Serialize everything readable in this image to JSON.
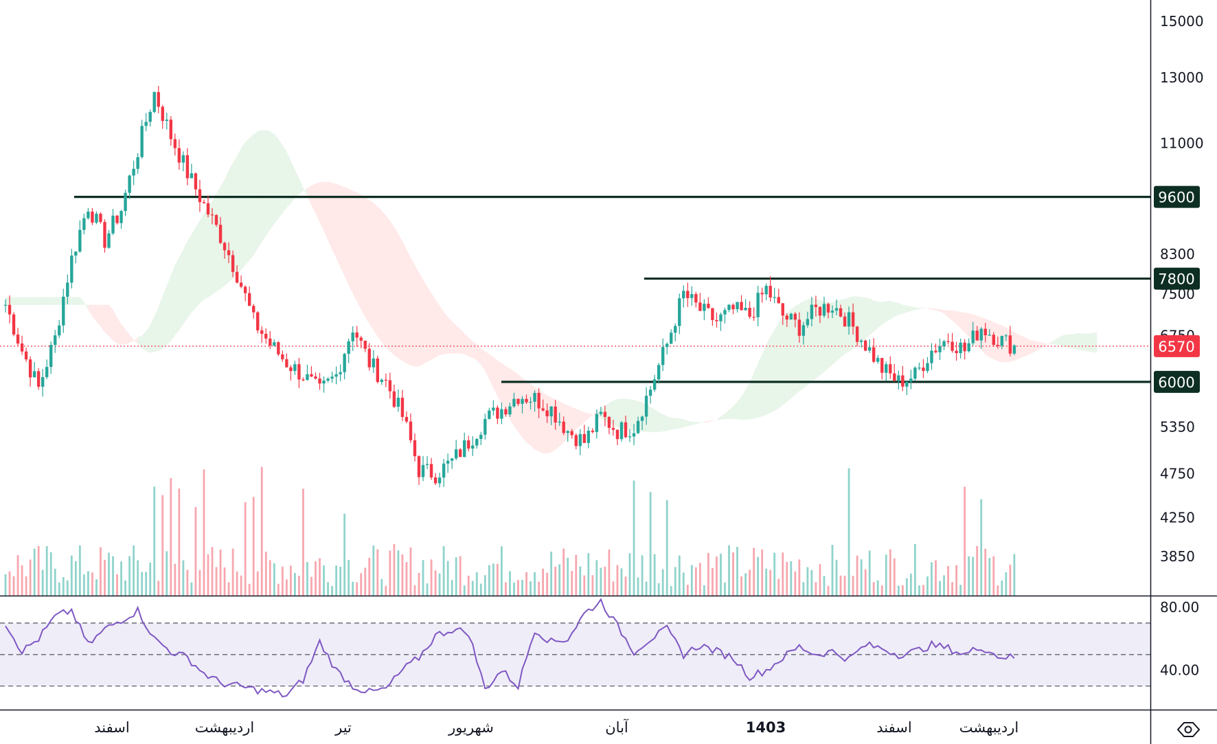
{
  "chart_data": [
    {
      "type": "candlestick",
      "title": "",
      "price_axis": {
        "ticks": [
          "15000",
          "13000",
          "11000",
          "8300",
          "7500",
          "6750",
          "5350",
          "4750",
          "4250",
          "3850"
        ],
        "tick_values": [
          15000,
          13000,
          11000,
          8300,
          7500,
          6750,
          5350,
          4750,
          4250,
          3850
        ],
        "scale": "log",
        "range": [
          3600,
          15600
        ]
      },
      "time_axis": {
        "labels": [
          "اسفند",
          "اردیبهشت",
          "تیر",
          "شهریور",
          "آبان",
          "1403",
          "اسفند",
          "اردیبهشت"
        ],
        "bold_label": "1403"
      },
      "horizontal_levels": [
        {
          "value": 9600,
          "label": "9600",
          "color": "#0d2e22",
          "from_month": "اسفند"
        },
        {
          "value": 7800,
          "label": "7800",
          "color": "#0d2e22",
          "from_month": "آبان"
        },
        {
          "value": 6000,
          "label": "6000",
          "color": "#0d2e22",
          "from_month": "شهریور"
        }
      ],
      "last_price": {
        "value": 6570,
        "label": "6570",
        "color": "#f23645"
      },
      "colors": {
        "up": "#26a69a",
        "down": "#f23645",
        "cloud_up": "#e8f5e9",
        "cloud_down": "#ffe9e9",
        "level": "#0d2e22",
        "rsi": "#7e57c2",
        "rsi_band": "#efedf8"
      },
      "price_path": [
        {
          "i": 0,
          "close": 7300
        },
        {
          "i": 4,
          "close": 6500
        },
        {
          "i": 8,
          "close": 5900
        },
        {
          "i": 12,
          "close": 6700
        },
        {
          "i": 16,
          "close": 8200
        },
        {
          "i": 20,
          "close": 9400
        },
        {
          "i": 24,
          "close": 8600
        },
        {
          "i": 28,
          "close": 9300
        },
        {
          "i": 32,
          "close": 10800
        },
        {
          "i": 36,
          "close": 12500
        },
        {
          "i": 40,
          "close": 11200
        },
        {
          "i": 44,
          "close": 10200
        },
        {
          "i": 48,
          "close": 9400
        },
        {
          "i": 52,
          "close": 8700
        },
        {
          "i": 56,
          "close": 7900
        },
        {
          "i": 60,
          "close": 7000
        },
        {
          "i": 64,
          "close": 6600
        },
        {
          "i": 68,
          "close": 6300
        },
        {
          "i": 72,
          "close": 6100
        },
        {
          "i": 76,
          "close": 5850
        },
        {
          "i": 80,
          "close": 6100
        },
        {
          "i": 84,
          "close": 6900
        },
        {
          "i": 88,
          "close": 6300
        },
        {
          "i": 92,
          "close": 6000
        },
        {
          "i": 96,
          "close": 5500
        },
        {
          "i": 100,
          "close": 4800
        },
        {
          "i": 104,
          "close": 4750
        },
        {
          "i": 108,
          "close": 4900
        },
        {
          "i": 112,
          "close": 5150
        },
        {
          "i": 116,
          "close": 5450
        },
        {
          "i": 120,
          "close": 5600
        },
        {
          "i": 124,
          "close": 5800
        },
        {
          "i": 128,
          "close": 5750
        },
        {
          "i": 132,
          "close": 5600
        },
        {
          "i": 136,
          "close": 5300
        },
        {
          "i": 140,
          "close": 5150
        },
        {
          "i": 144,
          "close": 5500
        },
        {
          "i": 148,
          "close": 5300
        },
        {
          "i": 152,
          "close": 5350
        },
        {
          "i": 156,
          "close": 5900
        },
        {
          "i": 160,
          "close": 6600
        },
        {
          "i": 164,
          "close": 7500
        },
        {
          "i": 168,
          "close": 7200
        },
        {
          "i": 172,
          "close": 7000
        },
        {
          "i": 176,
          "close": 7200
        },
        {
          "i": 180,
          "close": 7100
        },
        {
          "i": 184,
          "close": 7600
        },
        {
          "i": 188,
          "close": 7100
        },
        {
          "i": 192,
          "close": 6900
        },
        {
          "i": 196,
          "close": 7200
        },
        {
          "i": 200,
          "close": 7300
        },
        {
          "i": 204,
          "close": 7000
        },
        {
          "i": 208,
          "close": 6600
        },
        {
          "i": 212,
          "close": 6200
        },
        {
          "i": 216,
          "close": 6000
        },
        {
          "i": 220,
          "close": 6100
        },
        {
          "i": 224,
          "close": 6500
        },
        {
          "i": 228,
          "close": 6700
        },
        {
          "i": 232,
          "close": 6500
        },
        {
          "i": 236,
          "close": 6900
        },
        {
          "i": 240,
          "close": 6700
        },
        {
          "i": 244,
          "close": 6570
        }
      ],
      "rsi": {
        "levels": [
          70,
          50,
          30
        ],
        "ticks": [
          "80.00",
          "40.00"
        ],
        "tick_values": [
          80,
          40
        ],
        "range": [
          15,
          87
        ],
        "values": [
          {
            "i": 0,
            "v": 70
          },
          {
            "i": 4,
            "v": 52
          },
          {
            "i": 8,
            "v": 60
          },
          {
            "i": 12,
            "v": 74
          },
          {
            "i": 16,
            "v": 78
          },
          {
            "i": 20,
            "v": 56
          },
          {
            "i": 24,
            "v": 66
          },
          {
            "i": 28,
            "v": 72
          },
          {
            "i": 32,
            "v": 78
          },
          {
            "i": 36,
            "v": 60
          },
          {
            "i": 40,
            "v": 52
          },
          {
            "i": 44,
            "v": 48
          },
          {
            "i": 48,
            "v": 38
          },
          {
            "i": 52,
            "v": 32
          },
          {
            "i": 56,
            "v": 30
          },
          {
            "i": 60,
            "v": 28
          },
          {
            "i": 64,
            "v": 26
          },
          {
            "i": 68,
            "v": 24
          },
          {
            "i": 72,
            "v": 34
          },
          {
            "i": 76,
            "v": 58
          },
          {
            "i": 80,
            "v": 40
          },
          {
            "i": 84,
            "v": 30
          },
          {
            "i": 88,
            "v": 26
          },
          {
            "i": 92,
            "v": 28
          },
          {
            "i": 96,
            "v": 40
          },
          {
            "i": 100,
            "v": 48
          },
          {
            "i": 104,
            "v": 62
          },
          {
            "i": 108,
            "v": 66
          },
          {
            "i": 112,
            "v": 64
          },
          {
            "i": 116,
            "v": 28
          },
          {
            "i": 120,
            "v": 40
          },
          {
            "i": 124,
            "v": 30
          },
          {
            "i": 128,
            "v": 66
          },
          {
            "i": 132,
            "v": 58
          },
          {
            "i": 136,
            "v": 60
          },
          {
            "i": 140,
            "v": 76
          },
          {
            "i": 144,
            "v": 84
          },
          {
            "i": 148,
            "v": 68
          },
          {
            "i": 152,
            "v": 52
          },
          {
            "i": 156,
            "v": 60
          },
          {
            "i": 160,
            "v": 66
          },
          {
            "i": 164,
            "v": 50
          },
          {
            "i": 168,
            "v": 56
          },
          {
            "i": 172,
            "v": 52
          },
          {
            "i": 176,
            "v": 48
          },
          {
            "i": 180,
            "v": 36
          },
          {
            "i": 184,
            "v": 40
          },
          {
            "i": 188,
            "v": 48
          },
          {
            "i": 192,
            "v": 55
          },
          {
            "i": 196,
            "v": 50
          },
          {
            "i": 200,
            "v": 52
          },
          {
            "i": 204,
            "v": 47
          },
          {
            "i": 208,
            "v": 56
          },
          {
            "i": 212,
            "v": 54
          },
          {
            "i": 216,
            "v": 50
          },
          {
            "i": 220,
            "v": 52
          },
          {
            "i": 224,
            "v": 56
          },
          {
            "i": 228,
            "v": 54
          },
          {
            "i": 232,
            "v": 50
          },
          {
            "i": 236,
            "v": 55
          },
          {
            "i": 240,
            "v": 49
          },
          {
            "i": 244,
            "v": 48
          }
        ]
      }
    }
  ],
  "settings_icon": "hexagon-settings-icon"
}
